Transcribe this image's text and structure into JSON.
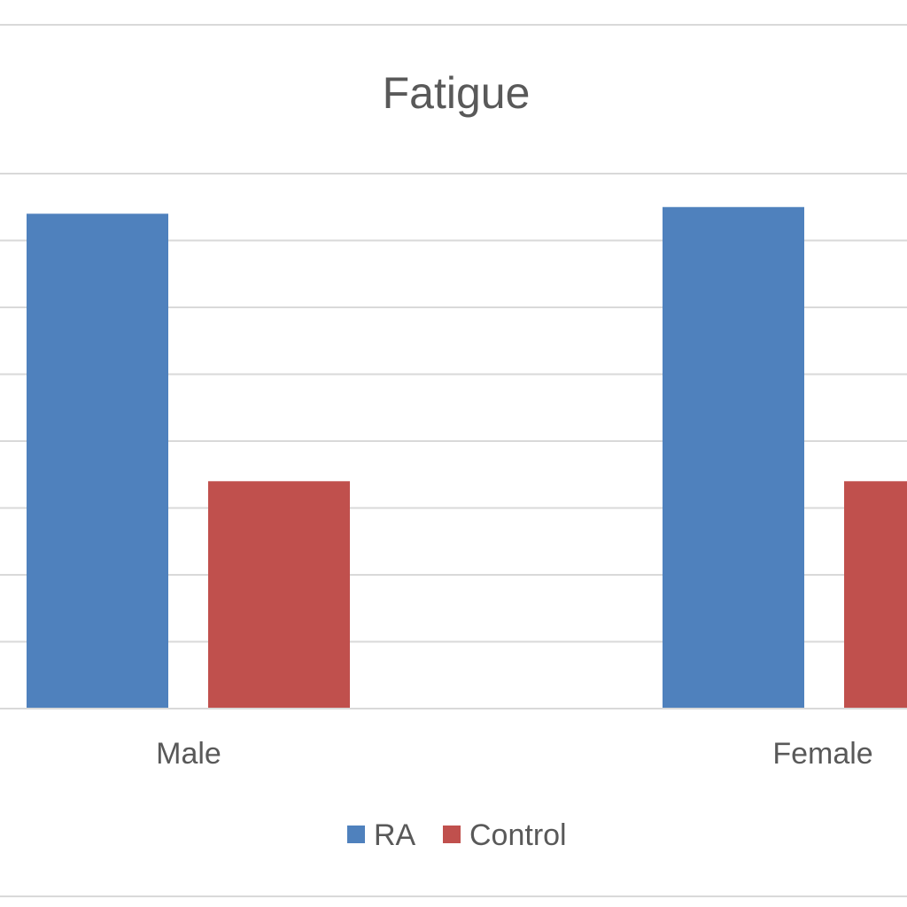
{
  "chart_data": {
    "type": "bar",
    "title": "Fatigue",
    "categories": [
      "Male",
      "Female"
    ],
    "series": [
      {
        "name": "RA",
        "values": [
          7.4,
          7.5
        ],
        "color": "#4F81BD"
      },
      {
        "name": "Control",
        "values": [
          3.4,
          3.4
        ],
        "color": "#C0504D"
      }
    ],
    "ylim": [
      0,
      8
    ],
    "gridlines": true,
    "legend_position": "bottom",
    "xlabel": "",
    "ylabel": ""
  }
}
